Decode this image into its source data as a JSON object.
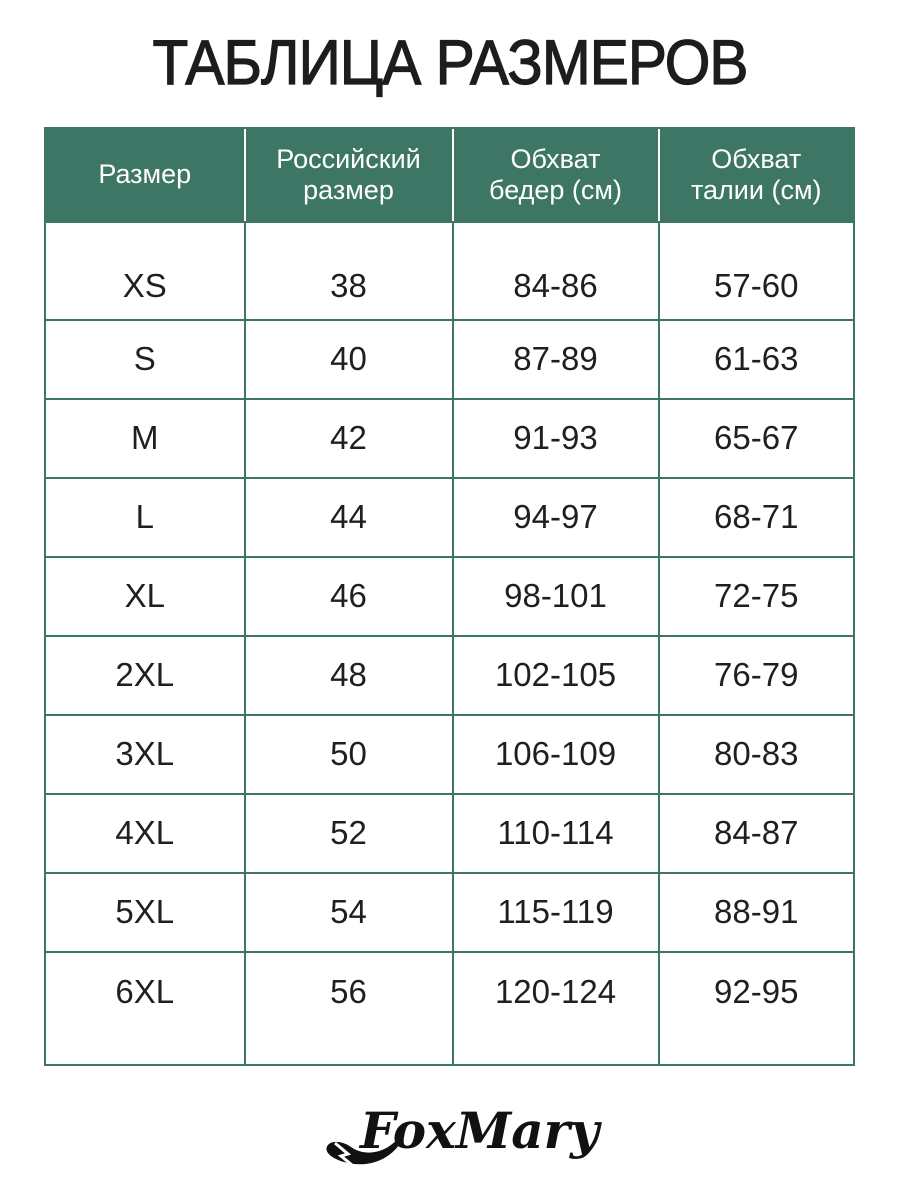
{
  "title": "ТАБЛИЦА РАЗМЕРОВ",
  "table": {
    "columns": [
      "Размер",
      "Российский размер",
      "Обхват бедер (см)",
      "Обхват талии (см)"
    ],
    "rows": [
      [
        "XS",
        "38",
        "84-86",
        "57-60"
      ],
      [
        "S",
        "40",
        "87-89",
        "61-63"
      ],
      [
        "M",
        "42",
        "91-93",
        "65-67"
      ],
      [
        "L",
        "44",
        "94-97",
        "68-71"
      ],
      [
        "XL",
        "46",
        "98-101",
        "72-75"
      ],
      [
        "2XL",
        "48",
        "102-105",
        "76-79"
      ],
      [
        "3XL",
        "50",
        "106-109",
        "80-83"
      ],
      [
        "4XL",
        "52",
        "110-114",
        "84-87"
      ],
      [
        "5XL",
        "54",
        "115-119",
        "88-91"
      ],
      [
        "6XL",
        "56",
        "120-124",
        "92-95"
      ]
    ]
  },
  "colors": {
    "header_bg": "#3E7666",
    "border": "#3E7666",
    "header_text": "#FFFFFF",
    "body_text": "#1F1F1F"
  },
  "logo": {
    "brand": "FoxMary"
  }
}
